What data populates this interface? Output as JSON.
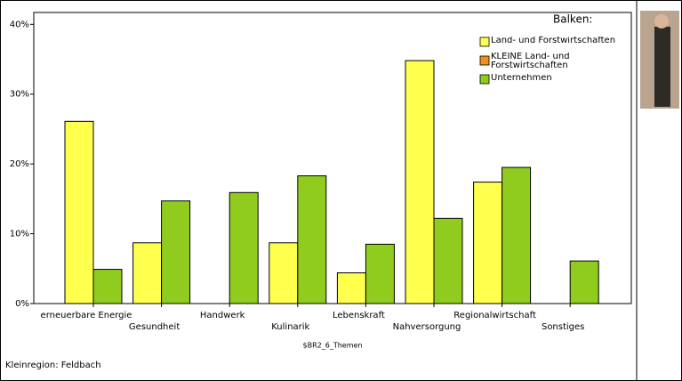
{
  "chart_data": {
    "type": "bar",
    "x_label": "$BR2_6_Themen",
    "footer": "Kleinregion: Feldbach",
    "legend_title": "Balken:",
    "legend_position": "upper right",
    "categories": [
      "erneuerbare Energie",
      "Gesundheit",
      "Handwerk",
      "Kulinarik",
      "Lebenskraft",
      "Nahversorgung",
      "Regionalwirtschaft",
      "Sonstiges"
    ],
    "series": [
      {
        "name": "Land- und Forstwirtschaften",
        "color": "#ffff4d",
        "values": [
          26.1,
          8.7,
          0,
          8.7,
          4.4,
          34.8,
          17.4,
          0
        ]
      },
      {
        "name": "KLEINE Land- und Forstwirtschaften",
        "color": "#f28c1c",
        "values": [
          null,
          null,
          null,
          null,
          null,
          null,
          null,
          null
        ]
      },
      {
        "name": "Unternehmen",
        "color": "#8fcc1e",
        "values": [
          4.9,
          14.7,
          15.9,
          18.3,
          8.5,
          12.2,
          19.5,
          6.1
        ]
      }
    ],
    "ylim": [
      0,
      41.7
    ],
    "yticks": [
      {
        "value": 0,
        "label": "0%"
      },
      {
        "value": 10,
        "label": "10%"
      },
      {
        "value": 20,
        "label": "20%"
      },
      {
        "value": 30,
        "label": "30%"
      },
      {
        "value": 40,
        "label": "40%"
      }
    ]
  }
}
